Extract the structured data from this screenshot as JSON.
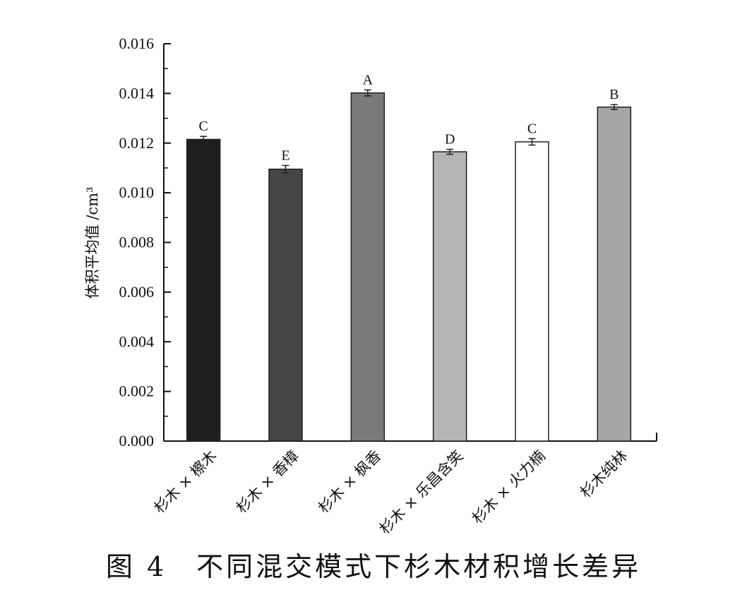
{
  "chart_data": {
    "type": "bar",
    "categories": [
      "杉木×檫木",
      "杉木×香樟",
      "杉木×枫香",
      "杉木×乐昌含笑",
      "杉木×火力楠",
      "杉木纯林"
    ],
    "display_categories": [
      "杉木 × 檫木",
      "杉木 × 香樟",
      "杉木 × 枫香",
      "杉木 × 乐昌含笑",
      "杉木 × 火力楠",
      "杉木纯林"
    ],
    "values": [
      0.01215,
      0.01095,
      0.01402,
      0.01165,
      0.01205,
      0.01345
    ],
    "errors": [
      0.00012,
      0.00015,
      0.00012,
      0.0001,
      0.00013,
      0.0001
    ],
    "significance": [
      "C",
      "E",
      "A",
      "D",
      "C",
      "B"
    ],
    "bar_colors": [
      "#1f1f1f",
      "#454545",
      "#7a7a7a",
      "#b5b5b5",
      "#ffffff",
      "#a6a6a6"
    ],
    "ylabel": "体积平均值 /cm³",
    "ylim": [
      0,
      0.016
    ],
    "yticks": [
      "0.000",
      "0.002",
      "0.004",
      "0.006",
      "0.008",
      "0.010",
      "0.012",
      "0.014",
      "0.016"
    ],
    "grid": false,
    "legend": "none"
  },
  "caption": "图 4　不同混交模式下杉木材积增长差异"
}
